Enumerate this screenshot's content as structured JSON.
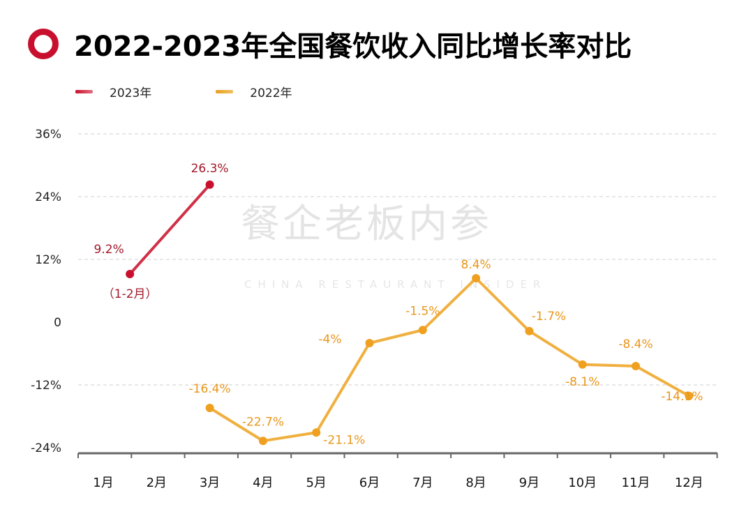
{
  "title": "2022-2023年全国餐饮收入同比增长率对比",
  "watermark": {
    "cn": "餐企老板内参",
    "en": "CHINA RESTAURANT INSIDER"
  },
  "chart_data": {
    "type": "line",
    "title": "2022-2023年全国餐饮收入同比增长率对比",
    "categories": [
      "1月",
      "2月",
      "3月",
      "4月",
      "5月",
      "6月",
      "7月",
      "8月",
      "9月",
      "10月",
      "11月",
      "12月"
    ],
    "ylim": [
      -24,
      36
    ],
    "yticks": [
      36,
      24,
      12,
      0,
      -12,
      -24
    ],
    "ytick_labels": [
      "36%",
      "24%",
      "12%",
      "0",
      "-12%",
      "-24%"
    ],
    "grid": true,
    "legend": "top-left",
    "series": [
      {
        "name": "2023年",
        "color": "#c8102e",
        "points": [
          {
            "x": "1-2月",
            "y": 9.2,
            "label": "9.2%",
            "note": "（1-2月）"
          },
          {
            "x": "3月",
            "y": 26.3,
            "label": "26.3%"
          }
        ]
      },
      {
        "name": "2022年",
        "color": "#f0a020",
        "points": [
          {
            "x": "3月",
            "y": -16.4,
            "label": "-16.4%"
          },
          {
            "x": "4月",
            "y": -22.7,
            "label": "-22.7%"
          },
          {
            "x": "5月",
            "y": -21.1,
            "label": "-21.1%"
          },
          {
            "x": "6月",
            "y": -4,
            "label": "-4%"
          },
          {
            "x": "7月",
            "y": -1.5,
            "label": "-1.5%"
          },
          {
            "x": "8月",
            "y": 8.4,
            "label": "8.4%"
          },
          {
            "x": "9月",
            "y": -1.7,
            "label": "-1.7%"
          },
          {
            "x": "10月",
            "y": -8.1,
            "label": "-8.1%"
          },
          {
            "x": "11月",
            "y": -8.4,
            "label": "-8.4%"
          },
          {
            "x": "12月",
            "y": -14.1,
            "label": "-14.1%"
          }
        ]
      }
    ]
  }
}
